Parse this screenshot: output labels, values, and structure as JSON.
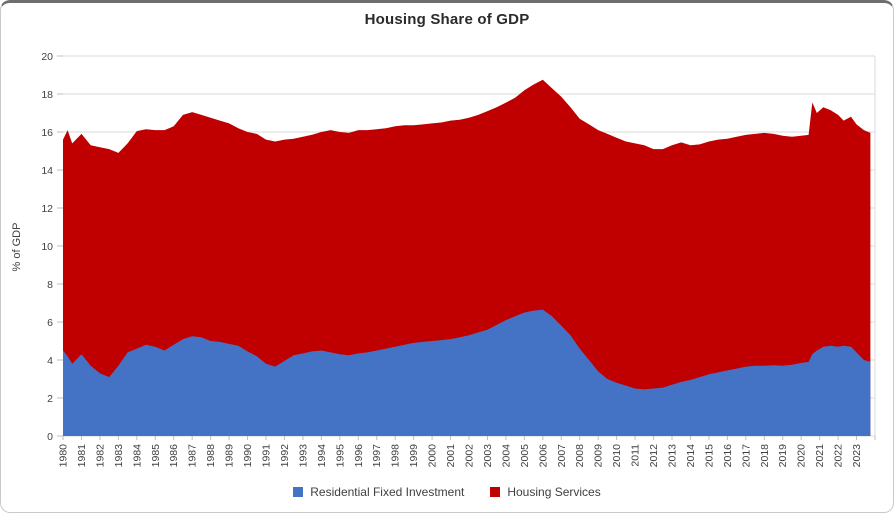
{
  "title": "Housing Share of GDP",
  "chart_data": {
    "type": "area",
    "stacked": true,
    "title": "Housing Share of GDP",
    "xlabel": "",
    "ylabel": "% of GDP",
    "ylim": [
      0,
      20
    ],
    "yticks": [
      0,
      2,
      4,
      6,
      8,
      10,
      12,
      14,
      16,
      18,
      20
    ],
    "grid": "horizontal",
    "legend_position": "bottom",
    "x_tick_labels": [
      "1980",
      "1981",
      "1982",
      "1983",
      "1984",
      "1985",
      "1986",
      "1987",
      "1988",
      "1989",
      "1990",
      "1991",
      "1992",
      "1993",
      "1994",
      "1995",
      "1996",
      "1997",
      "1998",
      "1999",
      "2000",
      "2001",
      "2002",
      "2003",
      "2004",
      "2005",
      "2006",
      "2007",
      "2008",
      "2009",
      "2010",
      "2011",
      "2012",
      "2013",
      "2014",
      "2015",
      "2016",
      "2017",
      "2018",
      "2019",
      "2020",
      "2021",
      "2022",
      "2023"
    ],
    "x": [
      1980,
      1980.25,
      1980.5,
      1981,
      1981.5,
      1982,
      1982.5,
      1983,
      1983.5,
      1984,
      1984.5,
      1985,
      1985.5,
      1986,
      1986.5,
      1987,
      1987.5,
      1988,
      1988.5,
      1989,
      1989.5,
      1990,
      1990.5,
      1991,
      1991.5,
      1992,
      1992.5,
      1993,
      1993.5,
      1994,
      1994.5,
      1995,
      1995.5,
      1996,
      1996.5,
      1997,
      1997.5,
      1998,
      1998.5,
      1999,
      1999.5,
      2000,
      2000.5,
      2001,
      2001.5,
      2002,
      2002.5,
      2003,
      2003.5,
      2004,
      2004.5,
      2005,
      2005.5,
      2006,
      2006.5,
      2007,
      2007.5,
      2008,
      2008.5,
      2009,
      2009.5,
      2010,
      2010.5,
      2011,
      2011.5,
      2012,
      2012.5,
      2013,
      2013.5,
      2014,
      2014.5,
      2015,
      2015.5,
      2016,
      2016.5,
      2017,
      2017.5,
      2018,
      2018.5,
      2019,
      2019.5,
      2020,
      2020.4,
      2020.6,
      2020.85,
      2021.2,
      2021.6,
      2022,
      2022.3,
      2022.7,
      2023,
      2023.4,
      2023.75
    ],
    "series": [
      {
        "name": "Residential Fixed Investment",
        "color": "#4472C4",
        "values": [
          4.5,
          4.2,
          3.8,
          4.3,
          3.7,
          3.3,
          3.1,
          3.7,
          4.4,
          4.6,
          4.8,
          4.7,
          4.5,
          4.8,
          5.1,
          5.25,
          5.2,
          5.0,
          4.95,
          4.85,
          4.75,
          4.45,
          4.2,
          3.8,
          3.65,
          3.95,
          4.25,
          4.35,
          4.45,
          4.5,
          4.4,
          4.3,
          4.25,
          4.35,
          4.4,
          4.5,
          4.6,
          4.7,
          4.8,
          4.9,
          4.95,
          5.0,
          5.05,
          5.1,
          5.2,
          5.3,
          5.45,
          5.6,
          5.85,
          6.1,
          6.3,
          6.5,
          6.6,
          6.65,
          6.3,
          5.8,
          5.3,
          4.6,
          4.0,
          3.4,
          3.0,
          2.8,
          2.65,
          2.5,
          2.45,
          2.5,
          2.55,
          2.7,
          2.85,
          2.95,
          3.1,
          3.25,
          3.35,
          3.45,
          3.55,
          3.65,
          3.7,
          3.7,
          3.72,
          3.7,
          3.75,
          3.85,
          3.9,
          4.3,
          4.5,
          4.7,
          4.75,
          4.7,
          4.75,
          4.7,
          4.4,
          4.0,
          3.9
        ]
      },
      {
        "name": "Housing Services",
        "color": "#C00000",
        "values": [
          11.1,
          11.9,
          11.6,
          11.6,
          11.6,
          11.9,
          12.0,
          11.2,
          11.0,
          11.45,
          11.35,
          11.4,
          11.6,
          11.5,
          11.8,
          11.8,
          11.7,
          11.75,
          11.65,
          11.6,
          11.45,
          11.55,
          11.7,
          11.8,
          11.85,
          11.65,
          11.4,
          11.4,
          11.4,
          11.5,
          11.7,
          11.7,
          11.7,
          11.75,
          11.7,
          11.65,
          11.6,
          11.6,
          11.55,
          11.45,
          11.45,
          11.45,
          11.45,
          11.5,
          11.45,
          11.45,
          11.45,
          11.5,
          11.45,
          11.45,
          11.5,
          11.7,
          11.9,
          12.1,
          12.0,
          12.05,
          12.0,
          12.1,
          12.4,
          12.7,
          12.9,
          12.9,
          12.85,
          12.9,
          12.85,
          12.6,
          12.55,
          12.6,
          12.6,
          12.35,
          12.25,
          12.25,
          12.25,
          12.2,
          12.2,
          12.2,
          12.2,
          12.25,
          12.18,
          12.1,
          12.0,
          11.95,
          11.95,
          13.25,
          12.5,
          12.6,
          12.4,
          12.2,
          11.85,
          12.1,
          12.0,
          12.1,
          12.05
        ]
      }
    ]
  },
  "colors": {
    "grid": "#D9D9D9",
    "tick": "#BFBFBF",
    "axis_text": "#404040",
    "title_text": "#2B2B2B",
    "card_border": "#C9C9C9",
    "card_top_border": "#6E6E6E"
  }
}
